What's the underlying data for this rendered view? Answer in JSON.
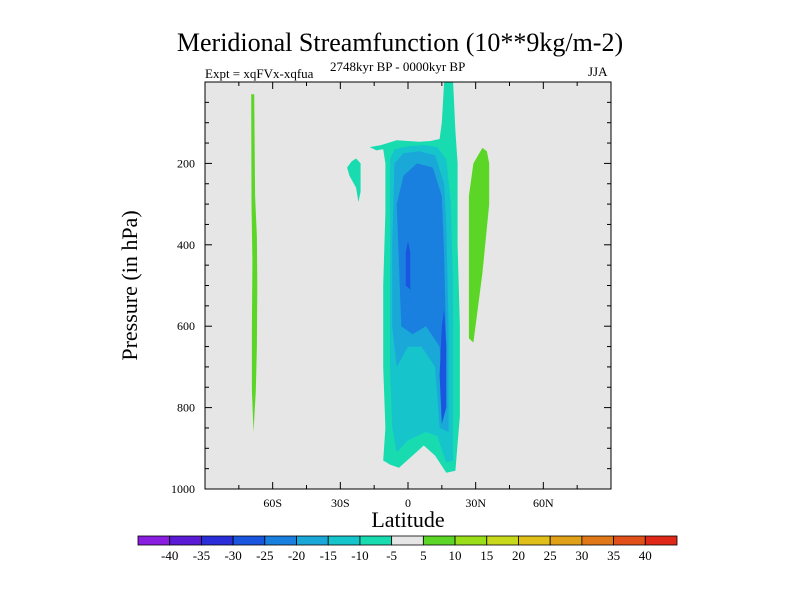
{
  "chart_data": {
    "type": "contour",
    "title": "Meridional Streamfunction (10**9kg/m-2)",
    "subtitle": "2748kyr BP - 0000kyr BP",
    "left_label": "Expt = xqFVx-xqfua",
    "right_label": "JJA",
    "xlabel": "Latitude",
    "ylabel": "Pressure (in hPa)",
    "xlim": [
      -90,
      90
    ],
    "ylim": [
      1000,
      0
    ],
    "x_ticks": [
      {
        "value": -60,
        "label": "60S"
      },
      {
        "value": -30,
        "label": "30S"
      },
      {
        "value": 0,
        "label": "0"
      },
      {
        "value": 30,
        "label": "30N"
      },
      {
        "value": 60,
        "label": "60N"
      }
    ],
    "y_ticks": [
      {
        "value": 200,
        "label": "200"
      },
      {
        "value": 400,
        "label": "400"
      },
      {
        "value": 600,
        "label": "600"
      },
      {
        "value": 800,
        "label": "800"
      },
      {
        "value": 1000,
        "label": "1000"
      }
    ],
    "colorbar": {
      "levels": [
        "-40",
        "-35",
        "-30",
        "-25",
        "-20",
        "-15",
        "-10",
        "-5",
        "5",
        "10",
        "15",
        "20",
        "25",
        "30",
        "35",
        "40"
      ],
      "colors": [
        "#8a1ee0",
        "#5a1ad6",
        "#2a2ed8",
        "#1a55e0",
        "#1a80e0",
        "#1aa8d8",
        "#16c4cc",
        "#18dcb0",
        "#e6e6e6",
        "#5cd626",
        "#9ade1a",
        "#c8d81a",
        "#e0c018",
        "#e0a018",
        "#e07818",
        "#e05018",
        "#e02818"
      ]
    },
    "regions": [
      {
        "name": "neg-5-main",
        "level": "-5",
        "color": "#18dcb0",
        "points": [
          [
            -8,
            940
          ],
          [
            -4,
            948
          ],
          [
            2,
            918
          ],
          [
            7,
            893
          ],
          [
            12,
            918
          ],
          [
            17,
            960
          ],
          [
            21,
            955
          ],
          [
            23,
            820
          ],
          [
            23,
            600
          ],
          [
            22,
            400
          ],
          [
            22,
            200
          ],
          [
            21,
            120
          ],
          [
            20,
            0
          ],
          [
            16,
            0
          ],
          [
            15,
            100
          ],
          [
            14,
            140
          ],
          [
            10,
            145
          ],
          [
            5,
            147
          ],
          [
            -5,
            143
          ],
          [
            -12,
            155
          ],
          [
            -17,
            160
          ],
          [
            -14,
            168
          ],
          [
            -11,
            165
          ],
          [
            -10,
            200
          ],
          [
            -10,
            320
          ],
          [
            -11,
            500
          ],
          [
            -11,
            700
          ],
          [
            -10,
            850
          ],
          [
            -11,
            930
          ]
        ]
      },
      {
        "name": "neg-10-main",
        "level": "-10",
        "color": "#16c4cc",
        "points": [
          [
            -5,
            910
          ],
          [
            0,
            880
          ],
          [
            8,
            860
          ],
          [
            13,
            870
          ],
          [
            17,
            935
          ],
          [
            20,
            930
          ],
          [
            20,
            800
          ],
          [
            20,
            500
          ],
          [
            19,
            300
          ],
          [
            17,
            190
          ],
          [
            13,
            160
          ],
          [
            7,
            155
          ],
          [
            0,
            158
          ],
          [
            -6,
            165
          ],
          [
            -8,
            190
          ],
          [
            -8,
            400
          ],
          [
            -8,
            700
          ],
          [
            -7,
            850
          ]
        ]
      },
      {
        "name": "neg-15-main",
        "level": "-15",
        "color": "#1aa8d8",
        "points": [
          [
            -5,
            700
          ],
          [
            0,
            650
          ],
          [
            6,
            650
          ],
          [
            12,
            700
          ],
          [
            14,
            850
          ],
          [
            18,
            860
          ],
          [
            18,
            600
          ],
          [
            17,
            350
          ],
          [
            16,
            250
          ],
          [
            12,
            180
          ],
          [
            5,
            170
          ],
          [
            -2,
            175
          ],
          [
            -6,
            200
          ],
          [
            -7,
            400
          ],
          [
            -7,
            600
          ]
        ]
      },
      {
        "name": "neg-20-main",
        "level": "-20",
        "color": "#1a80e0",
        "points": [
          [
            -3,
            600
          ],
          [
            2,
            620
          ],
          [
            8,
            600
          ],
          [
            14,
            650
          ],
          [
            16,
            800
          ],
          [
            17,
            650
          ],
          [
            16,
            420
          ],
          [
            15,
            280
          ],
          [
            11,
            210
          ],
          [
            4,
            200
          ],
          [
            -2,
            230
          ],
          [
            -5,
            300
          ],
          [
            -4,
            450
          ]
        ]
      },
      {
        "name": "neg-25-core1",
        "level": "-25",
        "color": "#1a55e0",
        "points": [
          [
            -1,
            500
          ],
          [
            1,
            510
          ],
          [
            1,
            420
          ],
          [
            0,
            390
          ],
          [
            -1,
            420
          ]
        ]
      },
      {
        "name": "neg-25-core2",
        "level": "-25",
        "color": "#1a55e0",
        "points": [
          [
            14,
            720
          ],
          [
            15,
            840
          ],
          [
            17,
            800
          ],
          [
            17,
            650
          ],
          [
            16,
            560
          ],
          [
            15,
            600
          ]
        ]
      },
      {
        "name": "neg-5-blob",
        "level": "-5",
        "color": "#18dcb0",
        "points": [
          [
            -26,
            230
          ],
          [
            -23,
            260
          ],
          [
            -22,
            295
          ],
          [
            -21,
            270
          ],
          [
            -21,
            220
          ],
          [
            -21,
            200
          ],
          [
            -23,
            188
          ],
          [
            -25,
            195
          ],
          [
            -27,
            210
          ]
        ]
      },
      {
        "name": "pos-5-nh",
        "level": "5",
        "color": "#5cd626",
        "points": [
          [
            27,
            630
          ],
          [
            29,
            640
          ],
          [
            33,
            470
          ],
          [
            36,
            300
          ],
          [
            36,
            200
          ],
          [
            35,
            170
          ],
          [
            33,
            162
          ],
          [
            29,
            200
          ],
          [
            27,
            280
          ],
          [
            27,
            400
          ],
          [
            27,
            520
          ]
        ]
      },
      {
        "name": "pos-5-sh",
        "level": "5",
        "color": "#5cd626",
        "points": [
          [
            -69.5,
            30
          ],
          [
            -68.2,
            30
          ],
          [
            -67.8,
            280
          ],
          [
            -67,
            380
          ],
          [
            -66.8,
            500
          ],
          [
            -67,
            650
          ],
          [
            -67.5,
            760
          ],
          [
            -68.5,
            860
          ],
          [
            -69.2,
            760
          ],
          [
            -69.2,
            600
          ],
          [
            -69,
            440
          ],
          [
            -69.4,
            300
          ]
        ]
      }
    ]
  }
}
